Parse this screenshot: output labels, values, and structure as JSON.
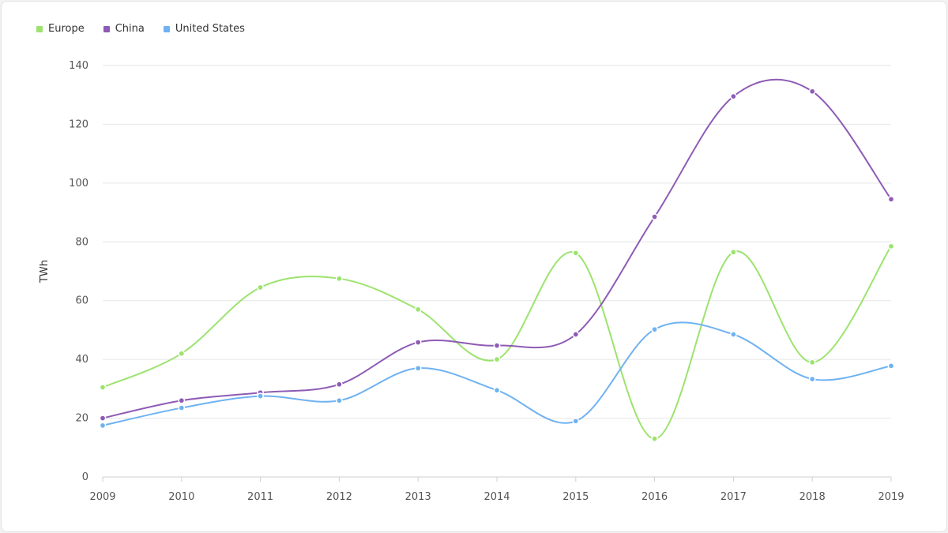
{
  "chart_data": {
    "type": "line",
    "title": "",
    "xlabel": "",
    "ylabel": "TWh",
    "categories": [
      "2009",
      "2010",
      "2011",
      "2012",
      "2013",
      "2014",
      "2015",
      "2016",
      "2017",
      "2018",
      "2019"
    ],
    "ylim": [
      0,
      140
    ],
    "yticks": [
      0,
      20,
      40,
      60,
      80,
      100,
      120,
      140
    ],
    "grid": true,
    "legend": "top-left",
    "series": [
      {
        "name": "Europe",
        "color": "#9ce36e",
        "values": [
          30.5,
          42,
          64.5,
          67.5,
          57,
          40,
          76.2,
          13,
          76.5,
          39,
          78.5
        ]
      },
      {
        "name": "China",
        "color": "#8e5bb5",
        "values": [
          20,
          26,
          28.7,
          31.5,
          45.8,
          44.7,
          48.5,
          88.5,
          129.5,
          131.2,
          94.5
        ]
      },
      {
        "name": "United States",
        "color": "#6fb2f2",
        "values": [
          17.5,
          23.5,
          27.5,
          26,
          37,
          29.5,
          19,
          50.2,
          48.5,
          33.3,
          37.8
        ]
      }
    ]
  }
}
